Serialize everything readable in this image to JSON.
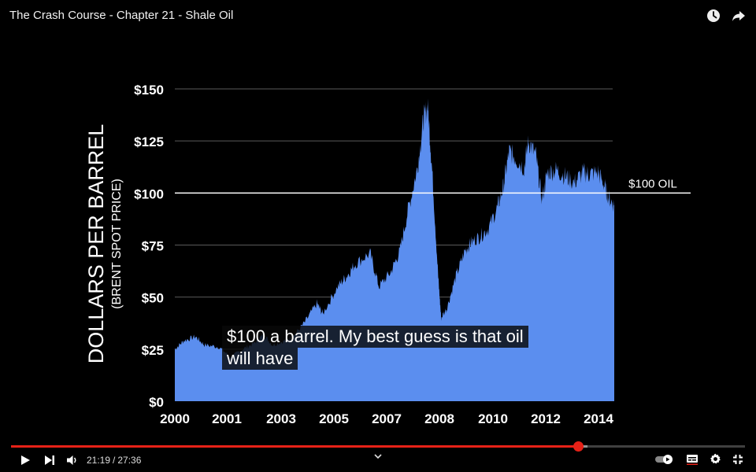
{
  "video": {
    "title": "The Crash Course - Chapter 21 - Shale Oil",
    "current_time": "21:19",
    "duration": "27:36",
    "time_separator": "/",
    "progress": 0.772,
    "buffered": 0.785
  },
  "caption": {
    "line1": "$100 a barrel. My best guess is that oil",
    "line2": "will have"
  },
  "icons": {
    "watch_later": "clock-icon",
    "share": "share-arrow-icon",
    "play": "play-icon",
    "next": "next-icon",
    "volume": "volume-icon",
    "chevron": "chevron-down-icon",
    "autoplay": "autoplay-toggle-icon",
    "subtitles": "subtitles-icon",
    "settings": "gear-icon",
    "fullscreen": "exit-fullscreen-icon"
  },
  "colors": {
    "area": "#5b8eef",
    "progress": "#e62117",
    "reference_line": "#ffffff",
    "grid": "#5a5a5a"
  },
  "chart_data": {
    "type": "area",
    "ylabel": "DOLLARS PER BARREL",
    "ylabel_sub": "(BRENT SPOT PRICE)",
    "ylim": [
      0,
      150
    ],
    "y_ticks": [
      0,
      25,
      50,
      75,
      100,
      125,
      150
    ],
    "y_tick_labels": [
      "$0",
      "$25",
      "$50",
      "$75",
      "$100",
      "$125",
      "$150"
    ],
    "xlim": [
      2000,
      2014.85
    ],
    "x_tick_labels": [
      "2000",
      "2001",
      "2003",
      "2005",
      "2007",
      "2008",
      "2010",
      "2012",
      "2014"
    ],
    "reference_line": {
      "value": 100,
      "label": "$100 OIL"
    },
    "grid": true,
    "series": [
      {
        "x": [
          2000.0,
          2000.3,
          2000.7,
          2001.0,
          2001.5,
          2001.9,
          2002.3,
          2002.7,
          2003.0,
          2003.3,
          2003.7,
          2004.0,
          2004.4,
          2004.8,
          2005.0,
          2005.5,
          2005.8,
          2006.1,
          2006.6,
          2006.9,
          2007.3,
          2007.6,
          2007.9,
          2008.2,
          2008.4,
          2008.55,
          2008.7,
          2008.9,
          2009.0,
          2009.2,
          2009.5,
          2009.8,
          2010.0,
          2010.3,
          2010.6,
          2010.9,
          2011.1,
          2011.3,
          2011.5,
          2011.8,
          2011.95,
          2012.2,
          2012.4,
          2012.6,
          2012.9,
          2013.2,
          2013.5,
          2013.8,
          2014.0,
          2014.3,
          2014.5,
          2014.65,
          2014.85
        ],
        "values": [
          25,
          29,
          31,
          27,
          26,
          21,
          25,
          28,
          32,
          27,
          29,
          31,
          38,
          47,
          42,
          55,
          60,
          66,
          71,
          55,
          62,
          72,
          93,
          112,
          135,
          142,
          110,
          60,
          40,
          45,
          60,
          72,
          76,
          79,
          83,
          93,
          103,
          120,
          117,
          112,
          125,
          118,
          97,
          110,
          111,
          108,
          105,
          110,
          109,
          110,
          104,
          98,
          94
        ]
      }
    ]
  }
}
